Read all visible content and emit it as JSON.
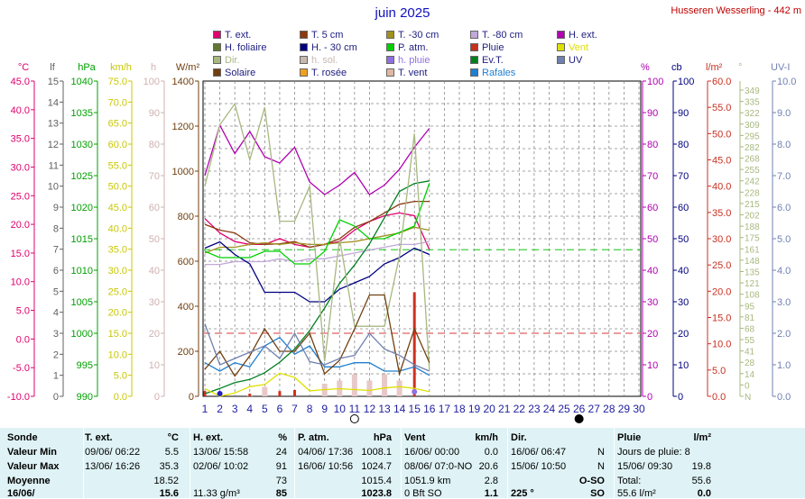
{
  "header": {
    "title": "juin 2025",
    "station": "Husseren Wesserling - 442 m"
  },
  "legend": [
    {
      "label": "T. ext.",
      "color": "#e0006e"
    },
    {
      "label": "T. 5 cm",
      "color": "#8b3a10"
    },
    {
      "label": "T. -30 cm",
      "color": "#a09020"
    },
    {
      "label": "T. -80 cm",
      "color": "#c0a8d8"
    },
    {
      "label": "H. ext.",
      "color": "#b000b0"
    },
    {
      "label": "H. foliaire",
      "color": "#607830"
    },
    {
      "label": "H. - 30 cm",
      "color": "#000080"
    },
    {
      "label": "P. atm.",
      "color": "#00d000"
    },
    {
      "label": "Pluie",
      "color": "#c83020"
    },
    {
      "label": "Vent",
      "color": "#e0e000"
    },
    {
      "label": "Dir.",
      "color": "#a8b880"
    },
    {
      "label": "h. sol.",
      "color": "#c8b8b0"
    },
    {
      "label": "h. pluie",
      "color": "#9070e0"
    },
    {
      "label": "Ev.T.",
      "color": "#008020"
    },
    {
      "label": "UV",
      "color": "#7080b0"
    },
    {
      "label": "Solaire",
      "color": "#704010"
    },
    {
      "label": "T. rosée",
      "color": "#f0a020"
    },
    {
      "label": "T. vent",
      "color": "#e0b8a0"
    },
    {
      "label": "Rafales",
      "color": "#2080d0"
    }
  ],
  "axes_left": [
    {
      "unit": "°C",
      "color": "#e0006e",
      "ticks": [
        "45.0",
        "40.0",
        "35.0",
        "30.0",
        "25.0",
        "20.0",
        "15.0",
        "10.0",
        "5.0",
        "0.0",
        "-5.0",
        "-10.0"
      ]
    },
    {
      "unit": "lf",
      "color": "#606060",
      "ticks": [
        "15",
        "14",
        "13",
        "12",
        "11",
        "10",
        "9",
        "8",
        "7",
        "6",
        "5",
        "4",
        "3",
        "2",
        "1",
        "0"
      ]
    },
    {
      "unit": "hPa",
      "color": "#00a000",
      "ticks": [
        "1040",
        "1035",
        "1030",
        "1025",
        "1020",
        "1015",
        "1010",
        "1005",
        "1000",
        "995",
        "990"
      ]
    },
    {
      "unit": "km/h",
      "color": "#c8c800",
      "ticks": [
        "75.0",
        "70.0",
        "65.0",
        "60.0",
        "55.0",
        "50.0",
        "45.0",
        "40.0",
        "35.0",
        "30.0",
        "25.0",
        "20.0",
        "15.0",
        "10.0",
        "5.0",
        "0.0"
      ]
    },
    {
      "unit": "h",
      "color": "#d0b0b0",
      "ticks": [
        "100",
        "90",
        "80",
        "70",
        "60",
        "50",
        "40",
        "30",
        "20",
        "10",
        "0"
      ]
    },
    {
      "unit": "W/m²",
      "color": "#704010",
      "ticks": [
        "1400",
        "1200",
        "1000",
        "800",
        "600",
        "400",
        "200",
        "0"
      ]
    }
  ],
  "axes_right": [
    {
      "unit": "%",
      "color": "#b000b0",
      "ticks": [
        "100",
        "90",
        "80",
        "70",
        "60",
        "50",
        "40",
        "30",
        "20",
        "10",
        "0"
      ]
    },
    {
      "unit": "cb",
      "color": "#000080",
      "ticks": [
        "100",
        "90",
        "80",
        "70",
        "60",
        "50",
        "40",
        "30",
        "20",
        "10",
        "0"
      ]
    },
    {
      "unit": "l/m²",
      "color": "#c83020",
      "ticks": [
        "60.0",
        "55.0",
        "50.0",
        "45.0",
        "40.0",
        "35.0",
        "30.0",
        "25.0",
        "20.0",
        "15.0",
        "10.0",
        "5.0",
        "0.0"
      ]
    },
    {
      "unit": "°",
      "color": "#a8b880",
      "ticks": [
        "349",
        "335",
        "322",
        "309",
        "295",
        "282",
        "268",
        "255",
        "242",
        "228",
        "215",
        "202",
        "188",
        "175",
        "161",
        "148",
        "135",
        "121",
        "108",
        "95",
        "81",
        "68",
        "55",
        "41",
        "28",
        "14",
        "0",
        "N"
      ]
    },
    {
      "unit": "UV-I",
      "color": "#7080b0",
      "ticks": [
        "10.0",
        "9.0",
        "8.0",
        "7.0",
        "6.0",
        "5.0",
        "4.0",
        "3.0",
        "2.0",
        "1.0",
        "0.0"
      ]
    }
  ],
  "x_ticks": [
    "1",
    "2",
    "3",
    "4",
    "5",
    "6",
    "7",
    "8",
    "9",
    "10",
    "11",
    "12",
    "13",
    "14",
    "15",
    "16",
    "17",
    "18",
    "19",
    "20",
    "21",
    "22",
    "23",
    "24",
    "25",
    "26",
    "27",
    "28",
    "29",
    "30"
  ],
  "chart_data": {
    "type": "line",
    "title": "juin 2025",
    "x": [
      1,
      2,
      3,
      4,
      5,
      6,
      7,
      8,
      9,
      10,
      11,
      12,
      13,
      14,
      15,
      16
    ],
    "xlim": [
      1,
      30
    ],
    "grid": true,
    "series": [
      {
        "name": "T. ext.",
        "axis": "°C",
        "color": "#e0006e",
        "values": [
          21.0,
          18.5,
          17.0,
          16.5,
          16.5,
          17.5,
          16.5,
          16.0,
          16.5,
          17.0,
          19.0,
          20.5,
          21.5,
          22.0,
          21.5,
          15.6
        ]
      },
      {
        "name": "T. 5 cm",
        "axis": "°C",
        "color": "#8b3a10",
        "values": [
          20.0,
          19.0,
          18.5,
          16.8,
          16.5,
          16.6,
          17.0,
          16.0,
          16.5,
          17.5,
          19.5,
          20.5,
          22.0,
          23.5,
          24.0,
          24.0
        ]
      },
      {
        "name": "T. -30 cm",
        "axis": "°C",
        "color": "#a09020",
        "values": [
          15.0,
          16.0,
          16.0,
          16.5,
          16.8,
          16.5,
          16.8,
          16.5,
          16.5,
          16.8,
          17.0,
          17.5,
          18.0,
          18.5,
          19.5,
          19.0
        ]
      },
      {
        "name": "T. -80 cm",
        "axis": "°C",
        "color": "#c0a8d8",
        "values": [
          13.0,
          13.0,
          13.5,
          13.5,
          13.5,
          14.0,
          13.5,
          14.0,
          14.0,
          14.5,
          15.0,
          15.5,
          16.0,
          16.5,
          16.5,
          17.0
        ]
      },
      {
        "name": "H. ext.",
        "axis": "%",
        "color": "#b000b0",
        "values": [
          70,
          86,
          77,
          84,
          76,
          74,
          79,
          68,
          64,
          67,
          71,
          64,
          67,
          72,
          79,
          85
        ]
      },
      {
        "name": "H. - 30 cm",
        "axis": "cb",
        "color": "#000080",
        "values": [
          47,
          49,
          45,
          42,
          33,
          33,
          33,
          30,
          30,
          34,
          36,
          38,
          42,
          44,
          47,
          45
        ]
      },
      {
        "name": "P. atm.",
        "axis": "hPa",
        "color": "#00d000",
        "values": [
          1013,
          1012,
          1012,
          1012,
          1013,
          1013,
          1011,
          1011,
          1013,
          1018,
          1017,
          1015,
          1015,
          1016,
          1017,
          1023.8
        ]
      },
      {
        "name": "Ev.T.",
        "axis": "l/m²",
        "color": "#008020",
        "values": [
          0.5,
          1.5,
          2.6,
          3.2,
          4.5,
          6.5,
          9.0,
          12.5,
          16.8,
          21.5,
          25.0,
          29.0,
          34.0,
          39.0,
          40.5,
          41.0
        ]
      },
      {
        "name": "Pluie",
        "axis": "l/m²",
        "color": "#c83020",
        "values": [
          1.0,
          0.0,
          0.0,
          0.5,
          0.0,
          1.0,
          1.2,
          0.0,
          0.0,
          0.0,
          0.0,
          0.0,
          0.0,
          0.0,
          19.8,
          0.0
        ]
      },
      {
        "name": "Vent",
        "axis": "km/h",
        "color": "#e0e000",
        "values": [
          1.8,
          0.0,
          0.8,
          2.3,
          2.8,
          5.5,
          4.5,
          1.3,
          1.6,
          1.8,
          1.6,
          1.4,
          2.0,
          2.3,
          1.9,
          1.1
        ]
      },
      {
        "name": "Rafales",
        "axis": "km/h",
        "color": "#2080d0",
        "values": [
          8,
          6,
          8,
          7,
          12,
          14,
          10,
          12,
          7,
          7,
          8,
          8,
          6,
          6,
          7,
          5
        ]
      },
      {
        "name": "Dir.",
        "axis": "°",
        "color": "#a8b880",
        "values": [
          240,
          310,
          334,
          270,
          330,
          200,
          200,
          240,
          40,
          180,
          80,
          80,
          80,
          160,
          300,
          30
        ]
      },
      {
        "name": "Solaire",
        "axis": "W/m²",
        "color": "#704010",
        "values": [
          120,
          200,
          90,
          180,
          300,
          200,
          200,
          280,
          100,
          160,
          300,
          450,
          450,
          100,
          300,
          150
        ]
      },
      {
        "name": "UV",
        "axis": "UV-I",
        "color": "#7080b0",
        "values": [
          2.3,
          1.0,
          1.2,
          1.4,
          1.6,
          1.2,
          2.0,
          1.1,
          1.0,
          1.2,
          1.3,
          2.0,
          1.5,
          1.3,
          1.0,
          0.8
        ]
      },
      {
        "name": "T. vent",
        "axis": "°C",
        "color": "#e0b8a0",
        "values": [
          0,
          0,
          0,
          0,
          0,
          0,
          0,
          0,
          0,
          0,
          0,
          0,
          0,
          0,
          0,
          0
        ]
      }
    ],
    "sunshine_bars_h": [
      0,
      1,
      0,
      0.5,
      3,
      0,
      0,
      0,
      4,
      5,
      7,
      5,
      7,
      5,
      0,
      0
    ],
    "reference_lines": [
      {
        "axis": "hPa",
        "value": 1013.25,
        "color": "#40d040",
        "dash": true
      },
      {
        "axis": "%",
        "value": 20,
        "color": "#e06060",
        "dash": true
      }
    ]
  },
  "table": {
    "columns": [
      {
        "header": "Sonde",
        "rows": [
          "Valeur Min",
          "Valeur Max",
          "Moyenne",
          "16/06/"
        ]
      },
      {
        "header": "T. ext.",
        "unit": "°C",
        "rows": [
          [
            "09/06/ 06:22",
            "5.5"
          ],
          [
            "13/06/ 16:26",
            "35.3"
          ],
          [
            "",
            "18.52"
          ],
          [
            "",
            "15.6"
          ]
        ]
      },
      {
        "header": "H. ext.",
        "unit": "%",
        "rows": [
          [
            "13/06/ 15:58",
            "24"
          ],
          [
            "02/06/ 10:02",
            "91"
          ],
          [
            "",
            "73"
          ],
          [
            "11.33 g/m³",
            "85"
          ]
        ]
      },
      {
        "header": "P. atm.",
        "unit": "hPa",
        "rows": [
          [
            "04/06/ 17:36",
            "1008.1"
          ],
          [
            "16/06/ 10:56",
            "1024.7"
          ],
          [
            "",
            "1015.4"
          ],
          [
            "",
            "1023.8"
          ]
        ]
      },
      {
        "header": "Vent",
        "unit": "km/h",
        "rows": [
          [
            "16/06/ 00:00",
            "0.0"
          ],
          [
            "08/06/ 07:0-NO",
            "20.6"
          ],
          [
            "1051.9 km",
            "2.8"
          ],
          [
            "0 Bft SO",
            "1.1"
          ]
        ]
      },
      {
        "header": "Dir.",
        "unit": "",
        "rows": [
          [
            "16/06/ 06:47",
            "N"
          ],
          [
            "15/06/ 10:50",
            "N"
          ],
          [
            "",
            "O-SO"
          ],
          [
            "225 °",
            "SO"
          ]
        ]
      },
      {
        "header": "Pluie",
        "unit": "l/m²",
        "rows": [
          [
            "Jours de pluie: 8",
            ""
          ],
          [
            "15/06/ 09:30",
            "19.8"
          ],
          [
            "Total:",
            "55.6"
          ],
          [
            "55.6 l/m²",
            "0.0"
          ]
        ]
      }
    ]
  }
}
